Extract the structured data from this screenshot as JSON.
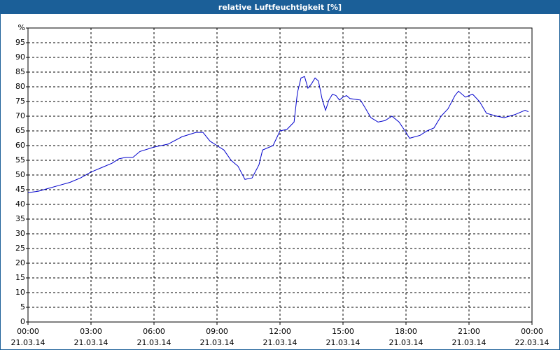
{
  "chart_data": {
    "type": "line",
    "title": "relative Luftfeuchtigkeit [%]",
    "x": [
      0,
      0.5,
      1,
      1.5,
      2,
      2.5,
      3,
      3.5,
      4,
      4.33,
      4.67,
      5,
      5.33,
      6,
      6.67,
      7.33,
      8,
      8.33,
      8.67,
      9,
      9.33,
      9.67,
      10,
      10.33,
      10.67,
      11,
      11.17,
      11.67,
      12,
      12.33,
      12.67,
      12.83,
      13,
      13.17,
      13.33,
      13.5,
      13.67,
      13.83,
      14,
      14.17,
      14.33,
      14.5,
      14.67,
      14.83,
      15,
      15.17,
      15.33,
      15.83,
      16,
      16.33,
      16.67,
      17,
      17.33,
      17.67,
      18,
      18.17,
      18.67,
      19,
      19.33,
      19.67,
      20,
      20.33,
      20.5,
      20.83,
      21.17,
      21.5,
      21.83,
      22.33,
      22.67,
      23.17,
      23.67,
      23.83
    ],
    "series": [
      {
        "name": "relative Luftfeuchtigkeit",
        "color": "#0000cc",
        "values": [
          44,
          44.5,
          45.5,
          46.5,
          47.5,
          49,
          51,
          52.5,
          54,
          55.5,
          56,
          56,
          58,
          59.5,
          60.5,
          63,
          64.5,
          64.5,
          61.5,
          60,
          58.5,
          55,
          53,
          48.5,
          49,
          53.5,
          58.5,
          60,
          65,
          65.5,
          68,
          78,
          83,
          83.5,
          79.5,
          81,
          83,
          82,
          76,
          72,
          75.5,
          77.5,
          77,
          75.5,
          76.5,
          77,
          76,
          75.5,
          73.5,
          69.5,
          68,
          68.5,
          70,
          68,
          64.5,
          62.5,
          63.5,
          65,
          66,
          70,
          72.5,
          77,
          78.5,
          76.5,
          77.5,
          75,
          71,
          70,
          69.5,
          70.5,
          72,
          71.5
        ]
      }
    ],
    "xlim": [
      0,
      24
    ],
    "xticks": [
      {
        "value": 0,
        "label": "00:00",
        "date": "21.03.14"
      },
      {
        "value": 3,
        "label": "03:00",
        "date": "21.03.14"
      },
      {
        "value": 6,
        "label": "06:00",
        "date": "21.03.14"
      },
      {
        "value": 9,
        "label": "09:00",
        "date": "21.03.14"
      },
      {
        "value": 12,
        "label": "12:00",
        "date": "21.03.14"
      },
      {
        "value": 15,
        "label": "15:00",
        "date": "21.03.14"
      },
      {
        "value": 18,
        "label": "18:00",
        "date": "21.03.14"
      },
      {
        "value": 21,
        "label": "21:00",
        "date": "21.03.14"
      },
      {
        "value": 24,
        "label": "00:00",
        "date": "22.03.14"
      }
    ],
    "ylim": [
      0,
      100
    ],
    "yticks": [
      0,
      5,
      10,
      15,
      20,
      25,
      30,
      35,
      40,
      45,
      50,
      55,
      60,
      65,
      70,
      75,
      80,
      85,
      90,
      95,
      {
        "value": 100,
        "label": "%"
      }
    ],
    "grid": true
  }
}
